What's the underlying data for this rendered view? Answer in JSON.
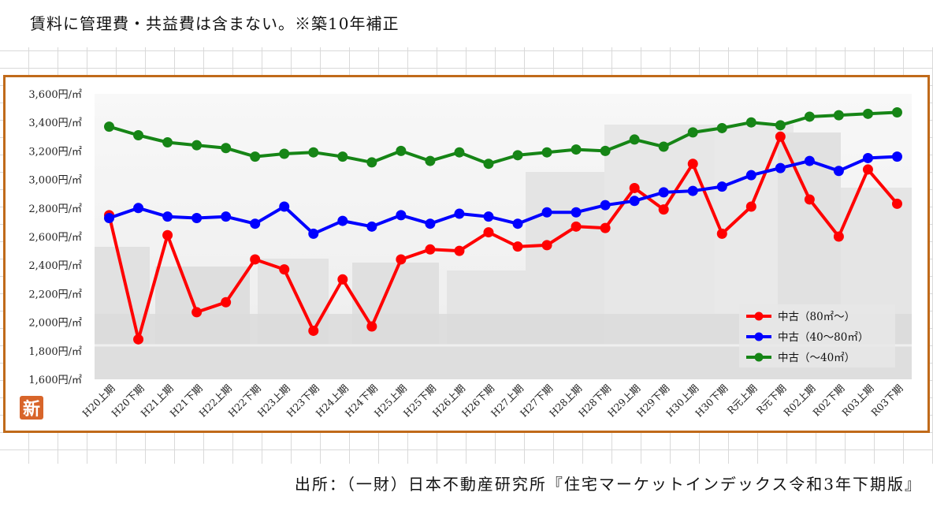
{
  "header": {
    "note": "賃料に管理費・共益費は含まない。※築10年補正"
  },
  "footer": {
    "source": "出所：（一財）日本不動産研究所『住宅マーケットインデックス令和3年下期版』"
  },
  "logo": {
    "text": "新"
  },
  "chart_data": {
    "type": "line",
    "categories": [
      "H20上期",
      "H20下期",
      "H21上期",
      "H21下期",
      "H22上期",
      "H22下期",
      "H23上期",
      "H23下期",
      "H24上期",
      "H24下期",
      "H25上期",
      "H25下期",
      "H26上期",
      "H26下期",
      "H27上期",
      "H27下期",
      "H28上期",
      "H28下期",
      "H29上期",
      "H29下期",
      "H30上期",
      "H30下期",
      "R元上期",
      "R元下期",
      "R02上期",
      "R02下期",
      "R03上期",
      "R03下期"
    ],
    "y_ticks": [
      "3,600円/㎡",
      "3,400円/㎡",
      "3,200円/㎡",
      "3,000円/㎡",
      "2,800円/㎡",
      "2,600円/㎡",
      "2,400円/㎡",
      "2,200円/㎡",
      "2,000円/㎡",
      "1,800円/㎡",
      "1,600円/㎡"
    ],
    "ylim": [
      1600,
      3600
    ],
    "legend_position": "bottom-right",
    "grid": false,
    "series": [
      {
        "name": "中古（80㎡～）",
        "color": "#ff0000",
        "values": [
          2750,
          1880,
          2610,
          2070,
          2140,
          2440,
          2370,
          1940,
          2300,
          1970,
          2440,
          2510,
          2500,
          2630,
          2530,
          2540,
          2670,
          2660,
          2940,
          2790,
          3110,
          2620,
          2810,
          3300,
          2860,
          2600,
          3070,
          2830
        ]
      },
      {
        "name": "中古（40～80㎡）",
        "color": "#0000ff",
        "values": [
          2730,
          2800,
          2740,
          2730,
          2740,
          2690,
          2810,
          2620,
          2710,
          2670,
          2750,
          2690,
          2760,
          2740,
          2690,
          2770,
          2770,
          2820,
          2850,
          2910,
          2920,
          2950,
          3030,
          3080,
          3130,
          3060,
          3150,
          3160
        ]
      },
      {
        "name": "中古（～40㎡）",
        "color": "#168516",
        "values": [
          3370,
          3310,
          3260,
          3240,
          3220,
          3160,
          3180,
          3190,
          3160,
          3120,
          3200,
          3130,
          3190,
          3110,
          3170,
          3190,
          3210,
          3200,
          3280,
          3230,
          3330,
          3360,
          3400,
          3380,
          3440,
          3450,
          3460,
          3470
        ]
      }
    ]
  }
}
